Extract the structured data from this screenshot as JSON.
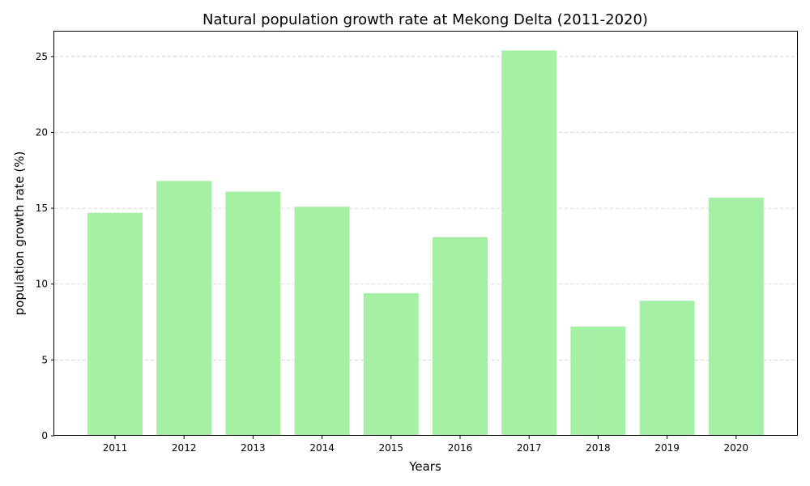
{
  "chart_data": {
    "type": "bar",
    "title": "Natural population growth rate at Mekong Delta (2011-2020)",
    "xlabel": "Years",
    "ylabel": "population growth rate (%)",
    "categories": [
      "2011",
      "2012",
      "2013",
      "2014",
      "2015",
      "2016",
      "2017",
      "2018",
      "2019",
      "2020"
    ],
    "values": [
      14.7,
      16.8,
      16.1,
      15.1,
      9.4,
      13.1,
      25.4,
      7.2,
      8.9,
      15.7
    ],
    "ylim": [
      0,
      26.7
    ],
    "yticks": [
      0,
      5,
      10,
      15,
      20,
      25
    ],
    "grid": "y-dashed",
    "bar_color": "#a6f0a6"
  }
}
